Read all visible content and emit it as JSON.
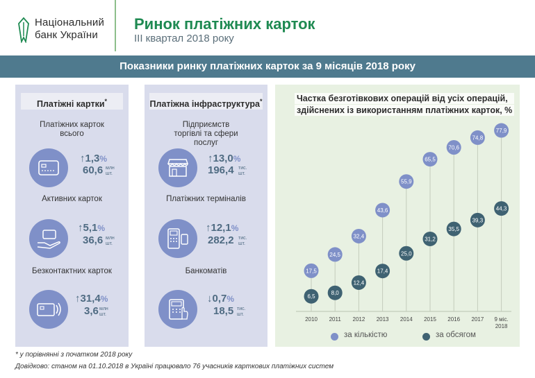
{
  "header": {
    "logo_line1": "Національний",
    "logo_line2": "банк України",
    "title": "Ринок платіжних карток",
    "subtitle": "III квартал 2018 року"
  },
  "banner": "Показники ринку платіжних карток за 9 місяців 2018 року",
  "cards_panel": {
    "heading": "Платіжні картки",
    "heading_mark": "*",
    "metrics": [
      {
        "label": "Платіжних карток всього",
        "icon": "credit-card-icon",
        "arrow": "↑",
        "pct": "1,3",
        "pct_unit": "%",
        "value": "60,6",
        "unit1": "млн",
        "unit2": "шт."
      },
      {
        "label": "Активних карток",
        "icon": "card-in-hand-icon",
        "arrow": "↑",
        "pct": "5,1",
        "pct_unit": "%",
        "value": "36,6",
        "unit1": "млн",
        "unit2": "шт."
      },
      {
        "label": "Безконтактних карток",
        "icon": "contactless-card-icon",
        "arrow": "↑",
        "pct": "31,4",
        "pct_unit": "%",
        "value": "3,6",
        "unit1": "млн",
        "unit2": "шт."
      }
    ]
  },
  "infra_panel": {
    "heading": "Платіжна інфраструктура",
    "heading_mark": "*",
    "metrics": [
      {
        "label": "Підприємств торгівлі та сфери послуг",
        "icon": "storefront-icon",
        "arrow": "↑",
        "pct": "13,0",
        "pct_unit": "%",
        "value": "196,4",
        "unit1": "тис.",
        "unit2": "шт."
      },
      {
        "label": "Платіжних терміналів",
        "icon": "pos-terminal-icon",
        "arrow": "↑",
        "pct": "12,1",
        "pct_unit": "%",
        "value": "282,2",
        "unit1": "тис.",
        "unit2": "шт."
      },
      {
        "label": "Банкоматів",
        "icon": "atm-icon",
        "arrow": "↓",
        "pct": "0,7",
        "pct_unit": "%",
        "value": "18,5",
        "unit1": "тис.",
        "unit2": "шт."
      }
    ]
  },
  "chart_data": {
    "type": "scatter",
    "title_line1": "Частка безготівкових операцій від усіх операцій,",
    "title_line2": "здійснених із використанням платіжних карток, %",
    "categories": [
      "2010",
      "2011",
      "2012",
      "2013",
      "2014",
      "2015",
      "2016",
      "2017",
      "9 міс. 2018"
    ],
    "category_lines": [
      [
        "2010"
      ],
      [
        "2011"
      ],
      [
        "2012"
      ],
      [
        "2013"
      ],
      [
        "2014"
      ],
      [
        "2015"
      ],
      [
        "2016"
      ],
      [
        "2017"
      ],
      [
        "9 міс.",
        "2018"
      ]
    ],
    "series": [
      {
        "name": "за кількістю",
        "color": "#7f90c8",
        "values": [
          17.5,
          24.5,
          32.4,
          43.6,
          55.9,
          65.5,
          70.6,
          74.8,
          77.9
        ],
        "labels": [
          "17,5",
          "24,5",
          "32,4",
          "43,6",
          "55,9",
          "65,5",
          "70,6",
          "74,8",
          "77,9"
        ]
      },
      {
        "name": "за обсягом",
        "color": "#3f6272",
        "values": [
          6.5,
          8.0,
          12.4,
          17.4,
          25.0,
          31.2,
          35.5,
          39.3,
          44.3
        ],
        "labels": [
          "6,5",
          "8,0",
          "12,4",
          "17,4",
          "25,0",
          "31,2",
          "35,5",
          "39,3",
          "44,3"
        ]
      }
    ],
    "ylim": [
      0,
      80
    ],
    "grid": false,
    "legend_position": "bottom"
  },
  "footnotes": {
    "note1": "* у порівнянні з початком 2018 року",
    "note2": "Довідково: станом на 01.10.2018 в Україні працювало 76 учасників карткових платіжних систем"
  },
  "colors": {
    "brand_green": "#1f8a52",
    "banner": "#4f7a8e",
    "panel_blue": "#d9dcec",
    "panel_green": "#e8f1e2",
    "accent_blue": "#7f90c8",
    "dark_teal": "#3f6272"
  }
}
